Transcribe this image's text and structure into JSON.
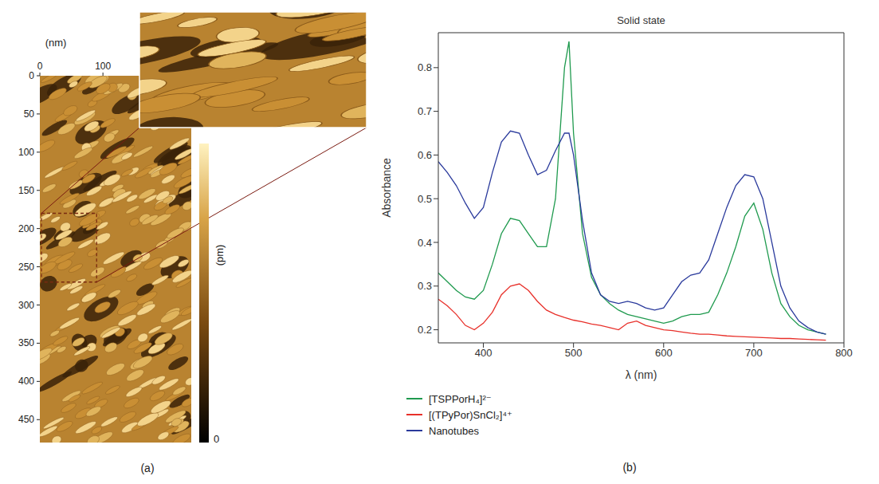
{
  "chart_data": [
    {
      "type": "image",
      "label": "(a)",
      "x_label": "(nm)",
      "xlim": [
        0,
        240
      ],
      "ylim": [
        0,
        480
      ],
      "xticks": [
        0,
        100
      ],
      "yticks": [
        0,
        50,
        100,
        150,
        200,
        250,
        300,
        350,
        400,
        450
      ],
      "colorbar_label": "(pm)",
      "colorbar_ticks": [
        0
      ]
    },
    {
      "type": "line",
      "label": "(b)",
      "title": "Solid state",
      "x_label": "λ (nm)",
      "y_label": "Absorbance",
      "x": [
        350,
        360,
        370,
        380,
        390,
        400,
        410,
        420,
        430,
        440,
        450,
        460,
        470,
        480,
        490,
        495,
        500,
        510,
        520,
        530,
        540,
        550,
        560,
        570,
        580,
        590,
        600,
        610,
        620,
        630,
        640,
        650,
        660,
        670,
        680,
        690,
        700,
        710,
        720,
        730,
        740,
        750,
        760,
        770,
        780
      ],
      "series": [
        {
          "name": "[TSPPorH₄]²⁻",
          "color": "#1f9a4e",
          "values": [
            0.33,
            0.31,
            0.29,
            0.275,
            0.27,
            0.29,
            0.35,
            0.42,
            0.455,
            0.45,
            0.42,
            0.39,
            0.39,
            0.5,
            0.8,
            0.86,
            0.65,
            0.42,
            0.32,
            0.28,
            0.26,
            0.245,
            0.235,
            0.23,
            0.225,
            0.22,
            0.215,
            0.22,
            0.23,
            0.235,
            0.235,
            0.24,
            0.28,
            0.33,
            0.39,
            0.46,
            0.49,
            0.43,
            0.33,
            0.26,
            0.23,
            0.21,
            0.2,
            0.195,
            0.19
          ]
        },
        {
          "name": "[(TPyPor)SnCl₂]⁴⁺",
          "color": "#e8302a",
          "values": [
            0.27,
            0.255,
            0.235,
            0.21,
            0.2,
            0.215,
            0.24,
            0.28,
            0.3,
            0.305,
            0.29,
            0.265,
            0.245,
            0.235,
            0.228,
            0.225,
            0.222,
            0.218,
            0.213,
            0.21,
            0.205,
            0.2,
            0.215,
            0.22,
            0.21,
            0.205,
            0.2,
            0.198,
            0.195,
            0.192,
            0.19,
            0.19,
            0.188,
            0.186,
            0.185,
            0.184,
            0.183,
            0.182,
            0.181,
            0.18,
            0.18,
            0.179,
            0.178,
            0.177,
            0.176
          ]
        },
        {
          "name": "Nanotubes",
          "color": "#2a3a9c",
          "values": [
            0.585,
            0.56,
            0.53,
            0.49,
            0.455,
            0.48,
            0.56,
            0.63,
            0.655,
            0.65,
            0.6,
            0.555,
            0.565,
            0.61,
            0.65,
            0.65,
            0.6,
            0.45,
            0.33,
            0.28,
            0.265,
            0.26,
            0.265,
            0.26,
            0.25,
            0.245,
            0.25,
            0.28,
            0.31,
            0.325,
            0.33,
            0.36,
            0.42,
            0.48,
            0.53,
            0.555,
            0.55,
            0.5,
            0.4,
            0.3,
            0.25,
            0.22,
            0.205,
            0.195,
            0.19
          ]
        }
      ],
      "xlim": [
        350,
        800
      ],
      "ylim": [
        0.17,
        0.88
      ],
      "xticks": [
        400,
        500,
        600,
        700,
        800
      ],
      "yticks": [
        0.2,
        0.3,
        0.4,
        0.5,
        0.6,
        0.7,
        0.8
      ],
      "legend": "bottom"
    }
  ]
}
